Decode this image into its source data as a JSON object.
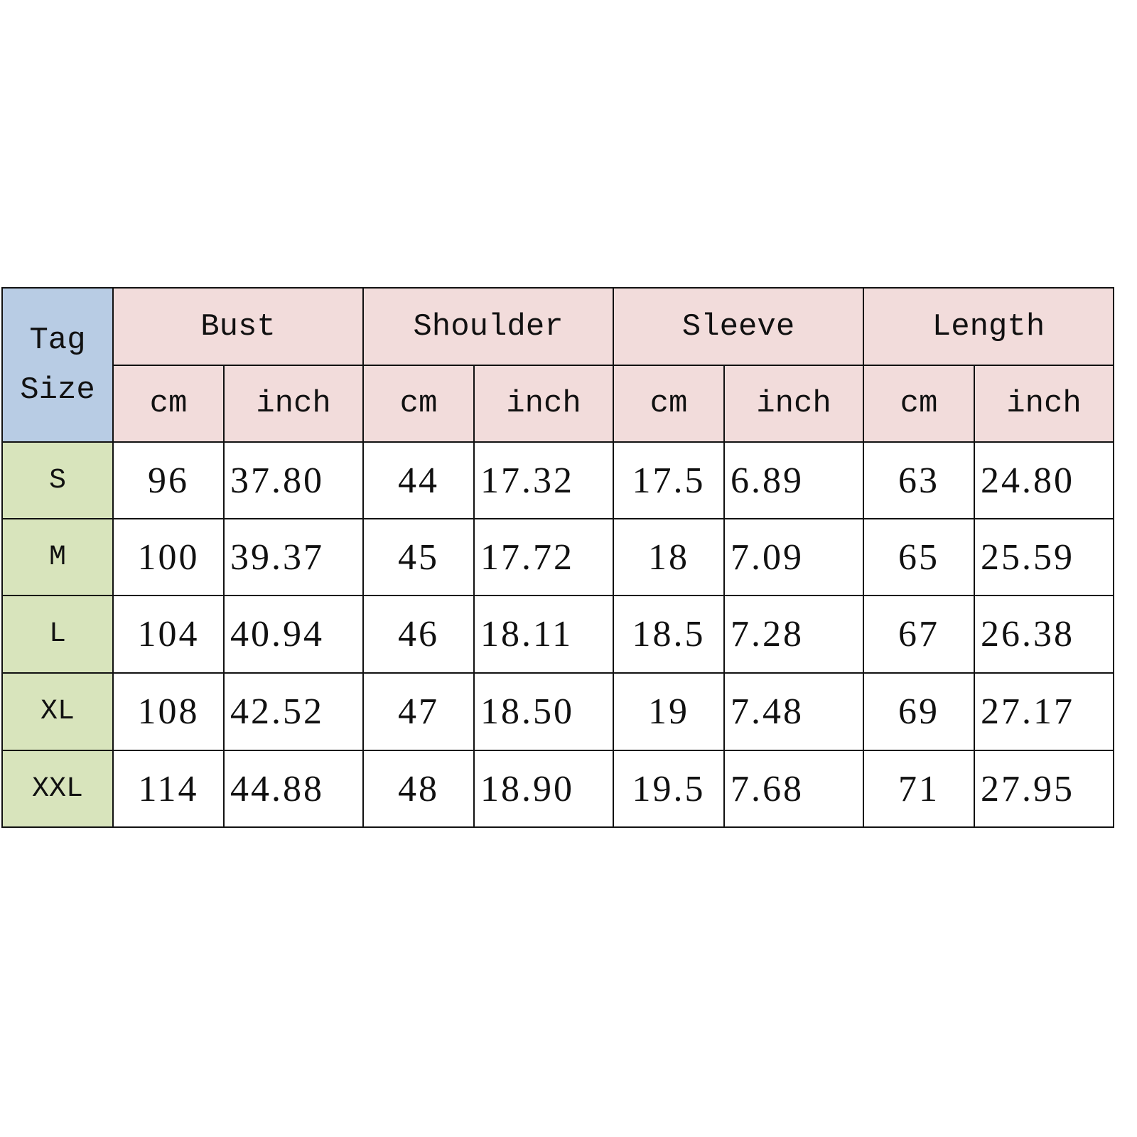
{
  "table": {
    "tag_header": [
      "Tag",
      "Size"
    ],
    "groups": [
      "Bust",
      "Shoulder",
      "Sleeve",
      "Length"
    ],
    "units": [
      "cm",
      "inch"
    ],
    "rows": [
      {
        "size": "S",
        "values": [
          "96",
          "37.80",
          "44",
          "17.32",
          "17.5",
          "6.89",
          "63",
          "24.80"
        ]
      },
      {
        "size": "M",
        "values": [
          "100",
          "39.37",
          "45",
          "17.72",
          "18",
          "7.09",
          "65",
          "25.59"
        ]
      },
      {
        "size": "L",
        "values": [
          "104",
          "40.94",
          "46",
          "18.11",
          "18.5",
          "7.28",
          "67",
          "26.38"
        ]
      },
      {
        "size": "XL",
        "values": [
          "108",
          "42.52",
          "47",
          "18.50",
          "19",
          "7.48",
          "69",
          "27.17"
        ]
      },
      {
        "size": "XXL",
        "values": [
          "114",
          "44.88",
          "48",
          "18.90",
          "19.5",
          "7.68",
          "71",
          "27.95"
        ]
      }
    ],
    "colors": {
      "tag_header": "#b8cce4",
      "group_header": "#f2dcdb",
      "size_column": "#d8e4bc"
    }
  }
}
